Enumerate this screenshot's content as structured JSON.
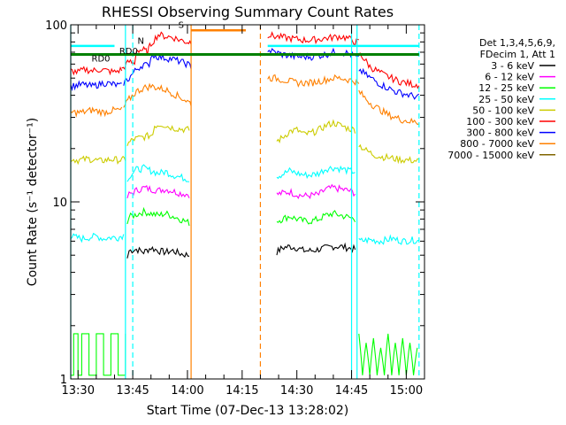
{
  "chart_data": {
    "type": "line",
    "title": "RHESSI Observing Summary Count Rates",
    "xlabel": "Start Time (07-Dec-13 13:28:02)",
    "ylabel": "Count Rate (s⁻¹ detector⁻¹)",
    "y_scale": "log",
    "ylim": [
      1,
      100
    ],
    "xlim_minutes_after_1330": [
      -2,
      95
    ],
    "x_tick_labels": [
      "13:30",
      "13:45",
      "14:00",
      "14:15",
      "14:30",
      "14:45",
      "15:00"
    ],
    "x_tick_minutes": [
      0,
      15,
      30,
      45,
      60,
      75,
      90
    ],
    "y_tick_labels": [
      "1",
      "10",
      "100"
    ],
    "y_tick_values": [
      1,
      10,
      100
    ],
    "legend_header": [
      "Det 1,3,4,5,6,9,",
      "FDecim 1, Att 1"
    ],
    "annotations": [
      {
        "text": "RD0",
        "color": "#008000"
      },
      {
        "text": "RD0",
        "color": "#008000"
      },
      {
        "text": "N",
        "color": "#00cccc"
      },
      {
        "text": "S",
        "color": "#ff8000"
      }
    ],
    "series": [
      {
        "name": "3 - 6 keV",
        "color": "#000000",
        "segments": [
          {
            "t": [
              13.5,
              14,
              16,
              18,
              20,
              22,
              24,
              26,
              28,
              30.5
            ],
            "y": [
              4.8,
              5.3,
              5.4,
              5.2,
              5.5,
              5.3,
              5.2,
              5.3,
              5.1,
              5.0
            ]
          },
          {
            "t": [
              54.5,
              56,
              58,
              60,
              62,
              64,
              66,
              68,
              70,
              72,
              74,
              76
            ],
            "y": [
              5.2,
              5.5,
              5.6,
              5.5,
              5.3,
              5.3,
              5.4,
              5.5,
              5.6,
              5.6,
              5.5,
              5.4
            ]
          }
        ]
      },
      {
        "name": "6 - 12 keV",
        "color": "#ff00ff",
        "segments": [
          {
            "t": [
              13.5,
              14,
              16,
              18,
              20,
              22,
              24,
              26,
              28,
              30.5
            ],
            "y": [
              10.5,
              11.0,
              11.6,
              12.0,
              11.8,
              11.6,
              11.8,
              11.5,
              11.2,
              11.0
            ]
          },
          {
            "t": [
              54.5,
              56,
              58,
              60,
              62,
              64,
              66,
              68,
              70,
              72,
              74,
              76
            ],
            "y": [
              11.0,
              11.2,
              11.4,
              11.0,
              10.8,
              10.9,
              11.0,
              11.8,
              12.0,
              11.8,
              11.6,
              11.2
            ]
          }
        ]
      },
      {
        "name": "12 - 25 keV",
        "color": "#00ff00",
        "segments": [
          {
            "t": [
              -2,
              -1.2,
              -1.2,
              0,
              0,
              1,
              1,
              3,
              3,
              5,
              5,
              7,
              7,
              9,
              9,
              11,
              11,
              13,
              13
            ],
            "y": [
              1.05,
              1.05,
              1.8,
              1.8,
              1.05,
              1.05,
              1.8,
              1.8,
              1.05,
              1.05,
              1.8,
              1.8,
              1.05,
              1.05,
              1.8,
              1.8,
              1.05,
              1.05,
              1.8
            ]
          },
          {
            "t": [
              13.5,
              14,
              16,
              18,
              20,
              22,
              24,
              26,
              28,
              30.5
            ],
            "y": [
              7.5,
              8.2,
              8.5,
              8.8,
              8.6,
              8.4,
              8.6,
              8.3,
              8.0,
              7.6
            ]
          },
          {
            "t": [
              54.5,
              56,
              58,
              60,
              62,
              64,
              66,
              68,
              70,
              72,
              74,
              76
            ],
            "y": [
              7.8,
              8.0,
              8.3,
              8.0,
              7.8,
              7.8,
              8.0,
              8.4,
              8.6,
              8.4,
              8.2,
              8.0
            ]
          },
          {
            "t": [
              77,
              78,
              79,
              80,
              81,
              82,
              83,
              84,
              85,
              86,
              87,
              88,
              89,
              90,
              91,
              92,
              93
            ],
            "y": [
              1.8,
              1.05,
              1.6,
              1.05,
              1.7,
              1.05,
              1.5,
              1.05,
              1.8,
              1.05,
              1.6,
              1.05,
              1.7,
              1.05,
              1.6,
              1.05,
              1.5
            ]
          }
        ]
      },
      {
        "name": "25 - 50 keV",
        "color": "#00ffff",
        "segments": [
          {
            "t": [
              -2,
              1,
              3,
              5,
              7,
              9,
              11,
              12.5
            ],
            "y": [
              6.4,
              6.2,
              6.3,
              6.4,
              6.2,
              6.3,
              6.3,
              6.5
            ]
          },
          {
            "t": [
              13.5,
              14,
              16,
              18,
              20,
              22,
              24,
              26,
              28,
              30.5
            ],
            "y": [
              13.0,
              14.0,
              15.2,
              15.5,
              15.0,
              14.5,
              14.8,
              14.2,
              13.8,
              13.4
            ]
          },
          {
            "t": [
              54.5,
              56,
              58,
              60,
              62,
              64,
              66,
              68,
              70,
              72,
              74,
              76
            ],
            "y": [
              14.0,
              14.3,
              15.0,
              14.5,
              14.2,
              14.2,
              14.5,
              15.4,
              15.6,
              15.4,
              15.0,
              14.8
            ]
          },
          {
            "t": [
              77,
              80,
              83,
              86,
              89,
              92,
              93.5
            ],
            "y": [
              6.0,
              6.1,
              6.0,
              6.2,
              6.0,
              6.1,
              6.0
            ]
          }
        ]
      },
      {
        "name": "50 - 100 keV",
        "color": "#cccc00",
        "segments": [
          {
            "t": [
              -2,
              0,
              3,
              6,
              9,
              12,
              13
            ],
            "y": [
              17.5,
              17.2,
              17.5,
              17.0,
              17.4,
              17.2,
              17.5
            ]
          },
          {
            "t": [
              13.5,
              15,
              17,
              19,
              20.5,
              21,
              23,
              25,
              27,
              30.5
            ],
            "y": [
              21.0,
              22.5,
              23.0,
              23.5,
              24.0,
              27.0,
              27.5,
              26.5,
              26.0,
              25.5
            ]
          },
          {
            "t": [
              54.5,
              56,
              58,
              60,
              62,
              64,
              66,
              68,
              70,
              72,
              74,
              76
            ],
            "y": [
              22.0,
              23.0,
              25.0,
              25.5,
              24.0,
              24.5,
              25.5,
              27.0,
              28.0,
              27.0,
              26.0,
              25.5
            ]
          },
          {
            "t": [
              77,
              79,
              81,
              83,
              85,
              87,
              89,
              91,
              93.5
            ],
            "y": [
              21.0,
              19.5,
              18.5,
              18.0,
              17.8,
              17.5,
              17.3,
              17.2,
              17.0
            ]
          }
        ]
      },
      {
        "name": "100 - 300 keV",
        "color": "#ff0000",
        "segments": [
          {
            "t": [
              -2,
              0,
              2,
              4,
              6,
              8,
              10,
              12
            ],
            "y": [
              55,
              54,
              56,
              55,
              56,
              55,
              54,
              56
            ]
          },
          {
            "t": [
              12,
              14,
              15.5,
              16,
              17,
              18,
              19,
              20,
              22,
              24,
              26,
              28,
              30,
              31
            ],
            "y": [
              56,
              62,
              60,
              72,
              72,
              72,
              70,
              78,
              88,
              86,
              85,
              82,
              80,
              80
            ]
          },
          {
            "t": [
              52,
              54,
              56,
              58,
              60,
              62,
              64,
              66,
              68,
              70,
              72,
              74,
              76,
              77
            ],
            "y": [
              88,
              86,
              85,
              84,
              83,
              82,
              82,
              83,
              84,
              85,
              86,
              84,
              80,
              80
            ]
          },
          {
            "t": [
              77,
              78,
              79,
              80,
              82,
              84,
              86,
              88,
              90,
              92,
              93.5
            ],
            "y": [
              68,
              66,
              62,
              58,
              55,
              52,
              50,
              48,
              47,
              46,
              46
            ]
          }
        ]
      },
      {
        "name": "300 - 800 keV",
        "color": "#0000ff",
        "segments": [
          {
            "t": [
              -2,
              1,
              4,
              7,
              10,
              12
            ],
            "y": [
              45,
              46,
              45,
              47,
              46,
              45
            ]
          },
          {
            "t": [
              12.5,
              14,
              16,
              18,
              19.5,
              20,
              22,
              24,
              26,
              28,
              30,
              31
            ],
            "y": [
              47,
              50,
              56,
              60,
              58,
              68,
              66,
              65,
              64,
              62,
              60,
              58
            ]
          },
          {
            "t": [
              52,
              54,
              56,
              58,
              60,
              62,
              64,
              66,
              68,
              70,
              72,
              74,
              76,
              77
            ],
            "y": [
              72,
              70,
              68,
              67,
              66,
              66,
              66,
              67,
              68,
              70,
              70,
              69,
              66,
              64
            ]
          },
          {
            "t": [
              77,
              79,
              81,
              83,
              85,
              87,
              89,
              91,
              93.5
            ],
            "y": [
              56,
              52,
              49,
              46,
              44,
              42,
              41,
              40,
              39
            ]
          }
        ]
      },
      {
        "name": "800 - 7000 keV",
        "color": "#ff8000",
        "segments": [
          {
            "t": [
              -2,
              1,
              4,
              7,
              10,
              12
            ],
            "y": [
              32,
              32,
              33,
              32,
              33,
              33
            ]
          },
          {
            "t": [
              12.5,
              14,
              16,
              18,
              20,
              22,
              24,
              26,
              28,
              30,
              31
            ],
            "y": [
              34,
              38,
              42,
              44,
              45,
              44,
              43,
              41,
              39,
              37,
              36
            ]
          },
          {
            "t": [
              52,
              54,
              56,
              58,
              60,
              62,
              64,
              66,
              68,
              70,
              72,
              74,
              76,
              77
            ],
            "y": [
              50,
              50,
              49,
              48,
              47,
              47,
              47,
              48,
              49,
              50,
              50,
              49,
              48,
              46
            ]
          },
          {
            "t": [
              77,
              79,
              81,
              83,
              85,
              87,
              89,
              91,
              93.5
            ],
            "y": [
              42,
              38,
              35,
              33,
              31,
              30,
              29,
              28.5,
              28
            ]
          }
        ]
      },
      {
        "name": "7000 - 15000 keV",
        "color": "#806600",
        "segments": []
      }
    ]
  }
}
